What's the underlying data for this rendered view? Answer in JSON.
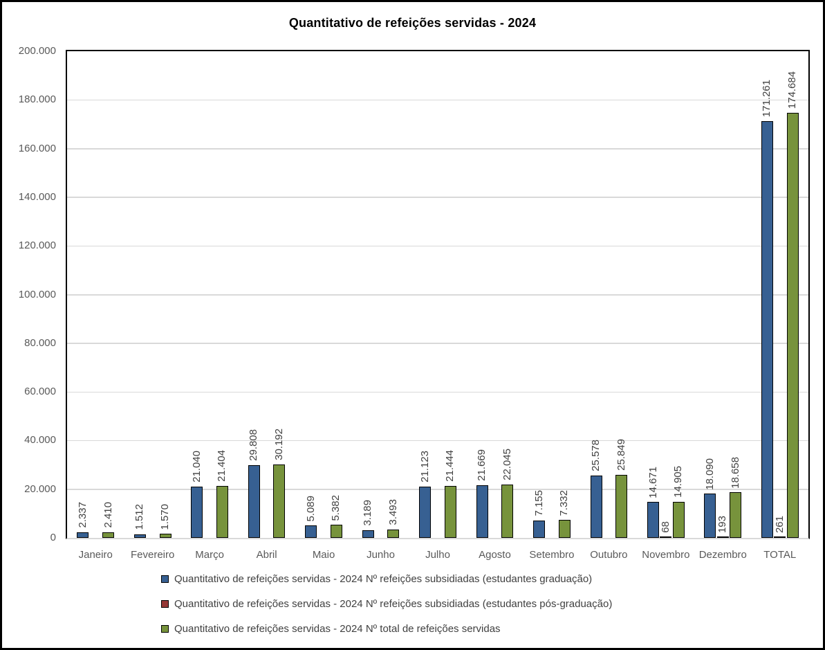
{
  "title": "Quantitativo de refeições servidas - 2024",
  "colors": {
    "series_graduacao": "#376092",
    "series_pos_graduacao": "#953735",
    "series_total": "#77933C",
    "bar_outline": "#000000",
    "gridline": "#d9d9d9",
    "axis_text": "#595959",
    "data_label_text": "#404040",
    "chart_border": "#000000"
  },
  "chart_data": {
    "type": "bar",
    "title": "Quantitativo de refeições servidas - 2024",
    "categories": [
      "Janeiro",
      "Fevereiro",
      "Março",
      "Abril",
      "Maio",
      "Junho",
      "Julho",
      "Agosto",
      "Setembro",
      "Outubro",
      "Novembro",
      "Dezembro",
      "TOTAL"
    ],
    "series": [
      {
        "name": "Quantitativo de refeições servidas - 2024 Nº refeições subsidiadas (estudantes graduação)",
        "color": "#376092",
        "values": [
          2337,
          1512,
          21040,
          29808,
          5089,
          3189,
          21123,
          21669,
          7155,
          25578,
          14671,
          18090,
          171261
        ],
        "labels": [
          "2.337",
          "1.512",
          "21.040",
          "29.808",
          "5.089",
          "3.189",
          "21.123",
          "21.669",
          "7.155",
          "25.578",
          "14.671",
          "18.090",
          "171.261"
        ]
      },
      {
        "name": "Quantitativo de refeições servidas - 2024 Nº refeições subsidiadas (estudantes pós-graduação)",
        "color": "#953735",
        "values": [
          null,
          null,
          null,
          null,
          null,
          null,
          null,
          null,
          null,
          null,
          68,
          193,
          261
        ],
        "labels": [
          null,
          null,
          null,
          null,
          null,
          null,
          null,
          null,
          null,
          null,
          "68",
          "193",
          "261"
        ]
      },
      {
        "name": "Quantitativo de refeições servidas - 2024 Nº total de refeições servidas",
        "color": "#77933C",
        "values": [
          2410,
          1570,
          21404,
          30192,
          5382,
          3493,
          21444,
          22045,
          7332,
          25849,
          14905,
          18658,
          174684
        ],
        "labels": [
          "2.410",
          "1.570",
          "21.404",
          "30.192",
          "5.382",
          "3.493",
          "21.444",
          "22.045",
          "7.332",
          "25.849",
          "14.905",
          "18.658",
          "174.684"
        ]
      }
    ],
    "xlabel": "",
    "ylabel": "",
    "ylim": [
      0,
      200000
    ],
    "ytick_step": 20000,
    "ytick_labels": [
      "0",
      "20.000",
      "40.000",
      "60.000",
      "80.000",
      "100.000",
      "120.000",
      "140.000",
      "160.000",
      "180.000",
      "200.000"
    ],
    "grid": true,
    "legend_position": "bottom",
    "data_label_rotation": 90
  }
}
